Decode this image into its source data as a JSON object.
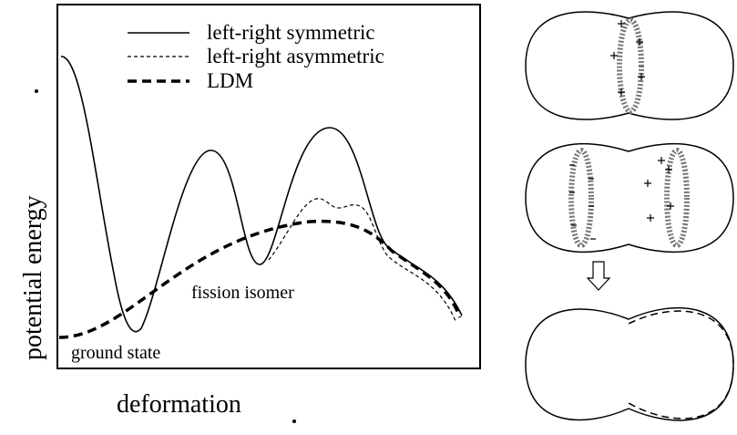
{
  "legend": {
    "items": [
      "left-right symmetric",
      "left-right asymmetric",
      "LDM"
    ]
  },
  "axes": {
    "y_label": "potential energy",
    "x_label": "deformation"
  },
  "annotations": {
    "isomer": "fission isomer",
    "ground": "ground state"
  }
}
